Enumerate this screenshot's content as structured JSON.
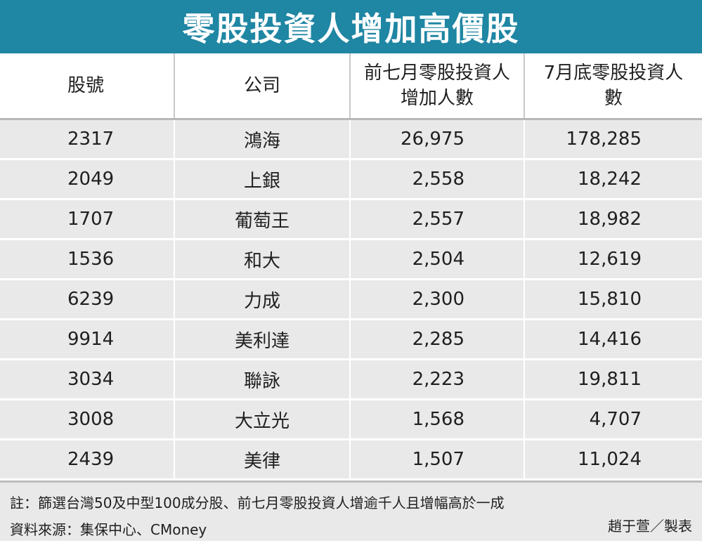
{
  "title": "零股投資人增加高價股",
  "table": {
    "headers": {
      "code": "股號",
      "company": "公司",
      "increase_line1": "前七月零股投資人",
      "increase_line2": "增加人數",
      "total_line1": "7月底零股投資人",
      "total_line2": "數"
    },
    "rows": [
      {
        "code": "2317",
        "company": "鴻海",
        "increase": "26,975",
        "total": "178,285"
      },
      {
        "code": "2049",
        "company": "上銀",
        "increase": "2,558",
        "total": "18,242"
      },
      {
        "code": "1707",
        "company": "葡萄王",
        "increase": "2,557",
        "total": "18,982"
      },
      {
        "code": "1536",
        "company": "和大",
        "increase": "2,504",
        "total": "12,619"
      },
      {
        "code": "6239",
        "company": "力成",
        "increase": "2,300",
        "total": "15,810"
      },
      {
        "code": "9914",
        "company": "美利達",
        "increase": "2,285",
        "total": "14,416"
      },
      {
        "code": "3034",
        "company": "聯詠",
        "increase": "2,223",
        "total": "19,811"
      },
      {
        "code": "3008",
        "company": "大立光",
        "increase": "1,568",
        "total": "4,707"
      },
      {
        "code": "2439",
        "company": "美律",
        "increase": "1,507",
        "total": "11,024"
      }
    ]
  },
  "footer": {
    "note": "註：篩選台灣50及中型100成分股、前七月零股投資人增逾千人且增幅高於一成",
    "source": "資料來源：集保中心、CMoney",
    "credit": "趙于萱／製表"
  },
  "colors": {
    "title_bar": "#1f86a3",
    "row_background": "#e9e9e9"
  }
}
